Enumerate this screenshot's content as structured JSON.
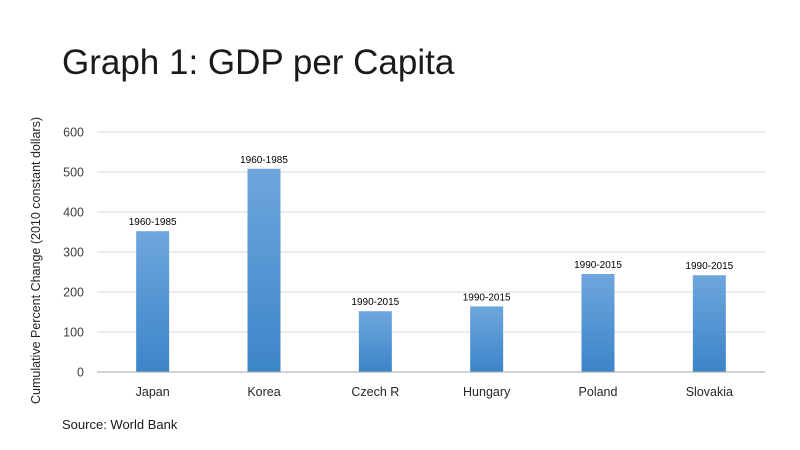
{
  "title": "Graph 1: GDP per Capita",
  "source": "Source: World Bank",
  "colors": {
    "bar_top": "#6ea6dd",
    "bar_bottom": "#3c85c9",
    "grid": "#d9d9d9",
    "axis": "#a6a6a6"
  },
  "chart_data": {
    "type": "bar",
    "title": "Graph 1: GDP per Capita",
    "xlabel": "",
    "ylabel": "Cumulative Percent Change (2010 constant dollars)",
    "ylim": [
      0,
      600
    ],
    "yticks": [
      0,
      100,
      200,
      300,
      400,
      500,
      600
    ],
    "grid": true,
    "legend": "none",
    "categories": [
      "Japan",
      "Korea",
      "Czech R",
      "Hungary",
      "Poland",
      "Slovakia"
    ],
    "values": [
      352,
      508,
      152,
      164,
      245,
      242
    ],
    "data_labels": [
      "1960-1985",
      "1960-1985",
      "1990-2015",
      "1990-2015",
      "1990-2015",
      "1990-2015"
    ]
  }
}
